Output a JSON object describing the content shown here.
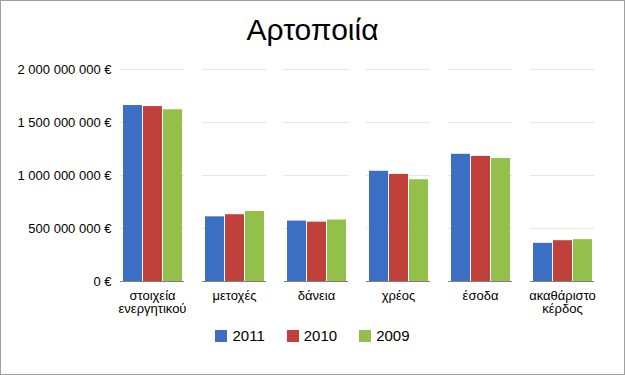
{
  "chart_data": {
    "type": "bar",
    "title": "Αρτοποιία",
    "categories": [
      "στοιχεία ενεργητικού",
      "μετοχές",
      "δάνεια",
      "χρέος",
      "έσοδα",
      "ακαθάριστο κέρδος"
    ],
    "series": [
      {
        "name": "2011",
        "color": "#3a6fc4",
        "values": [
          1660000000,
          610000000,
          570000000,
          1040000000,
          1200000000,
          360000000
        ]
      },
      {
        "name": "2010",
        "color": "#c0403c",
        "values": [
          1650000000,
          630000000,
          560000000,
          1010000000,
          1180000000,
          385000000
        ]
      },
      {
        "name": "2009",
        "color": "#92c04a",
        "values": [
          1620000000,
          660000000,
          580000000,
          960000000,
          1160000000,
          395000000
        ]
      }
    ],
    "ylim": [
      0,
      2000000000
    ],
    "yticks": [
      {
        "value": 0,
        "label": "0 €"
      },
      {
        "value": 500000000,
        "label": "500 000 000 €"
      },
      {
        "value": 1000000000,
        "label": "1 000 000 000 €"
      },
      {
        "value": 1500000000,
        "label": "1 500 000 000 €"
      },
      {
        "value": 2000000000,
        "label": "2 000 000 000 €"
      }
    ],
    "grid": true,
    "legend": "bottom"
  }
}
